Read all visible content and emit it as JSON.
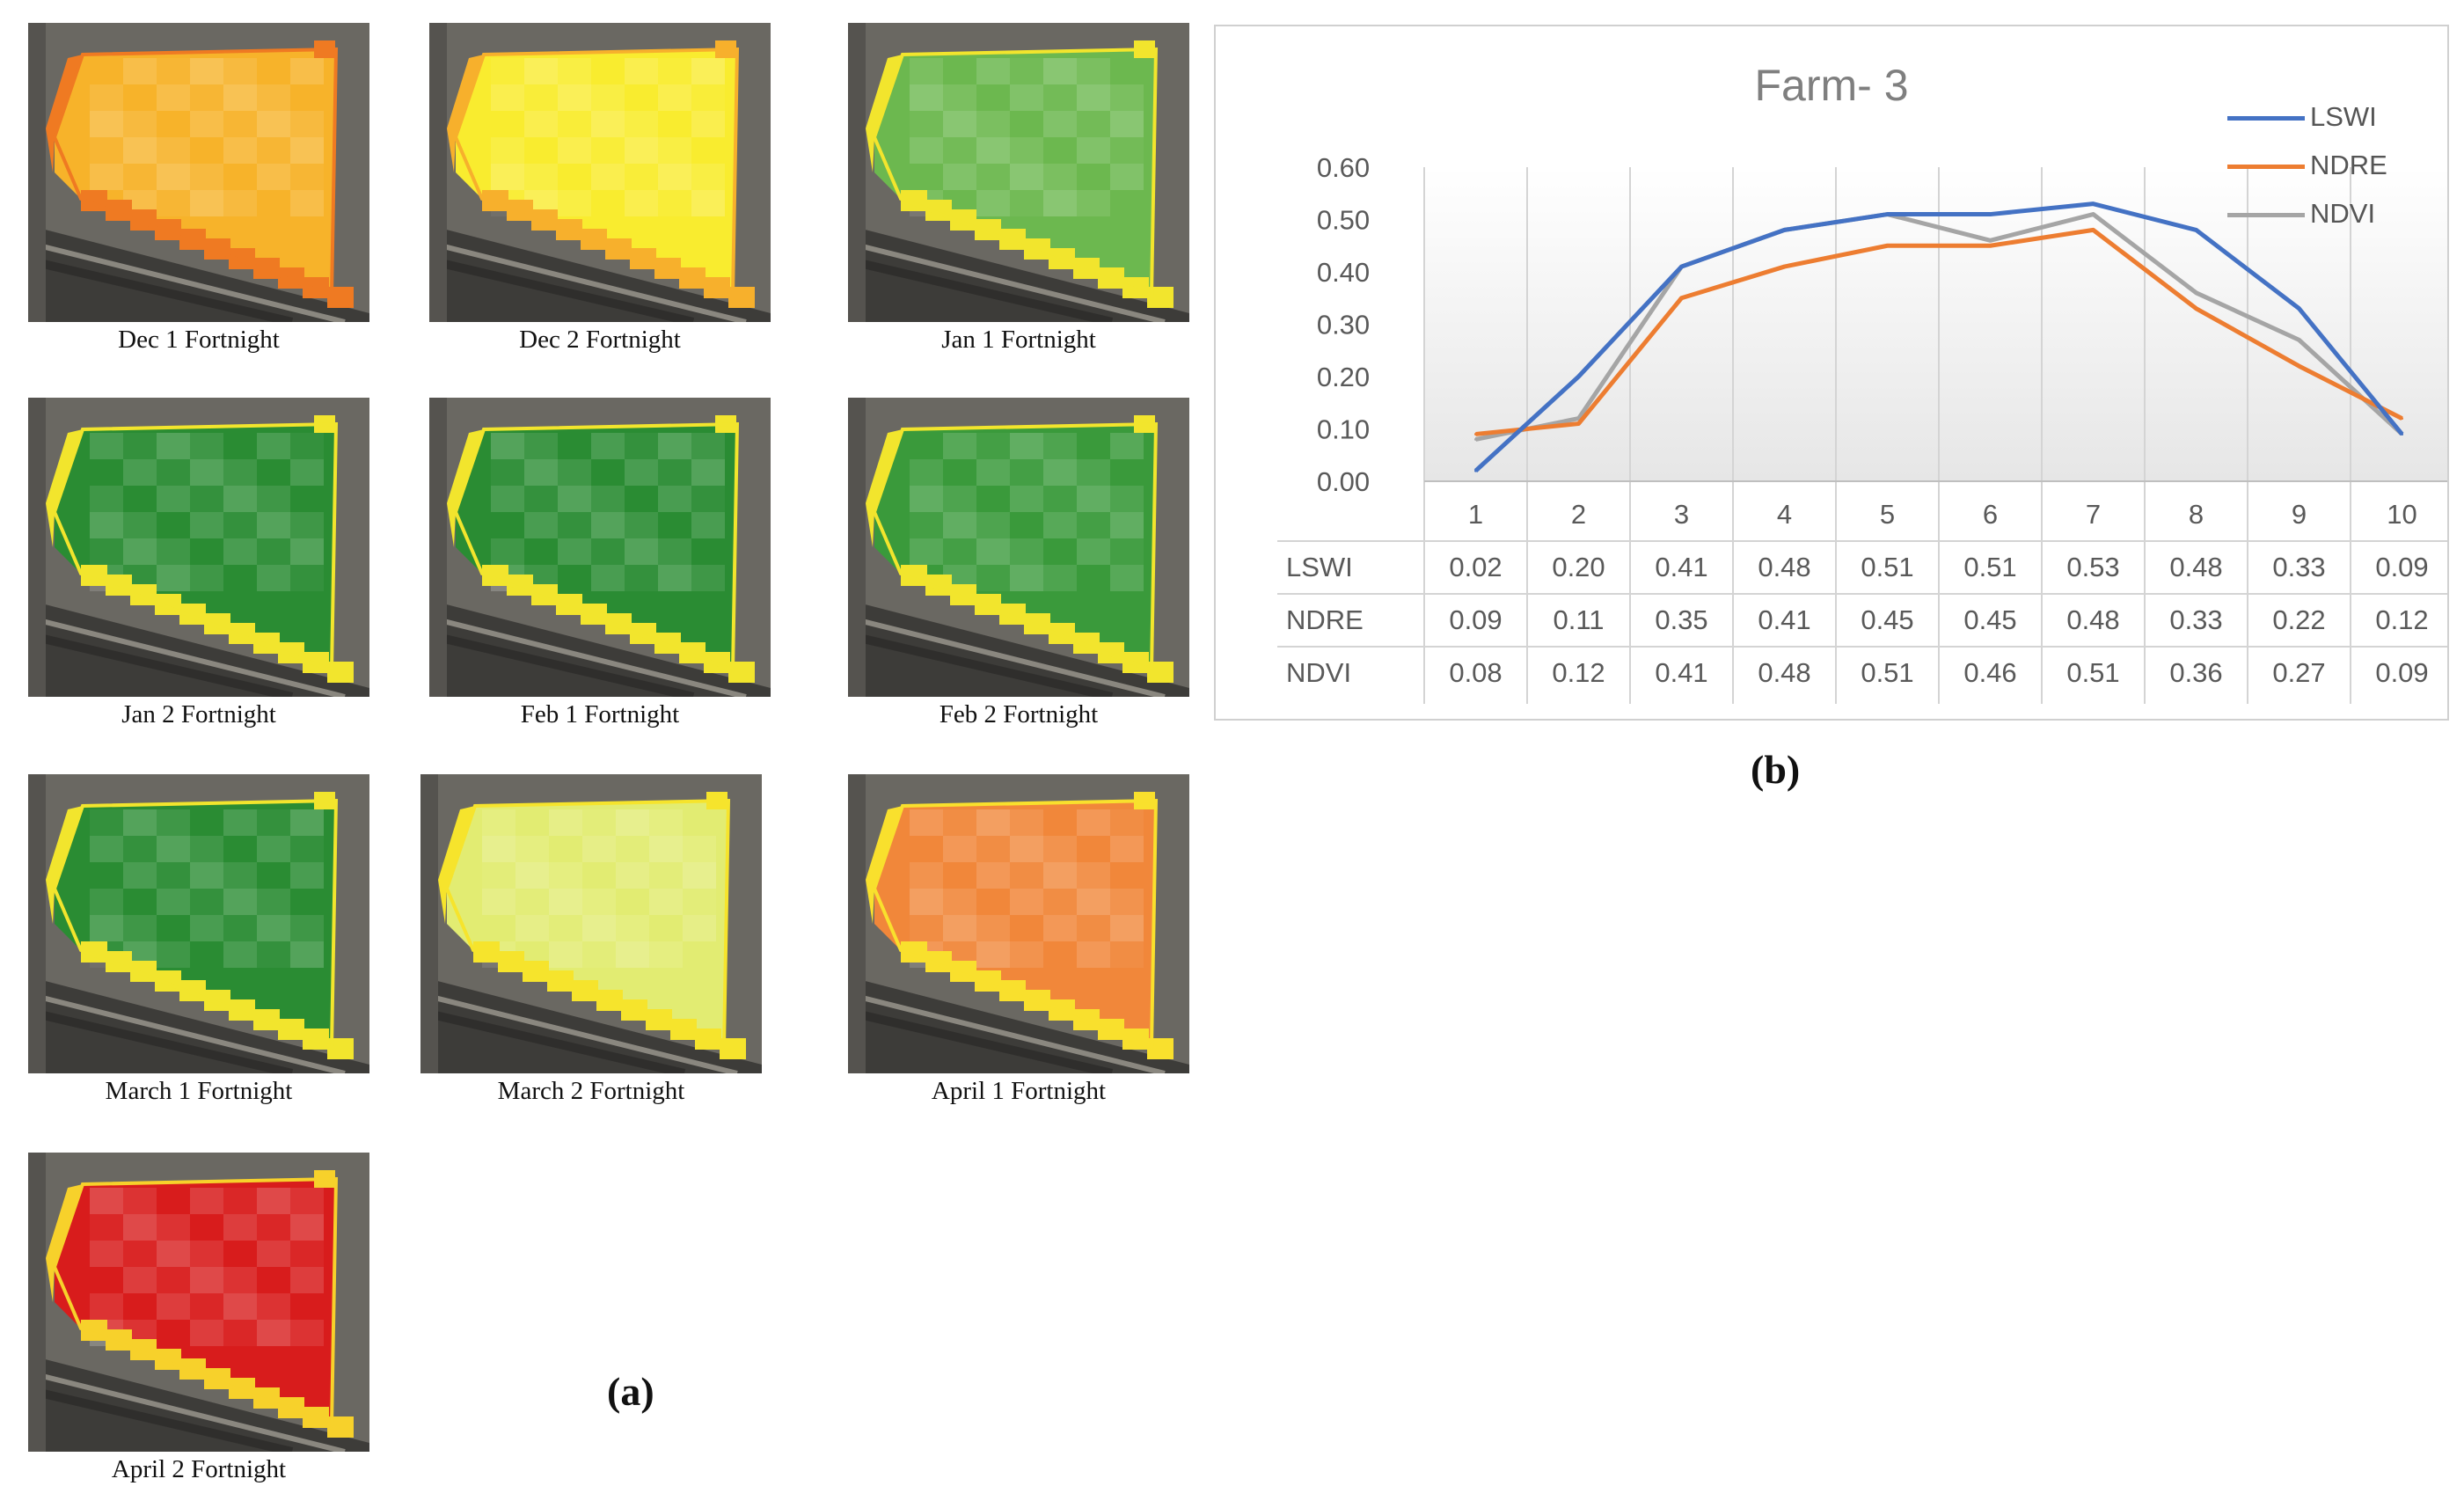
{
  "panel_a": {
    "letter": "(a)",
    "tiles": [
      {
        "label": "Dec 1 Fortnight",
        "field_color": "#f7b32a",
        "edge_color": "#ef7a22"
      },
      {
        "label": "Dec 2 Fortnight",
        "field_color": "#f9ec2f",
        "edge_color": "#f7b02c"
      },
      {
        "label": "Jan 1 Fortnight",
        "field_color": "#6cb84f",
        "edge_color": "#f2e52d"
      },
      {
        "label": "Jan 2 Fortnight",
        "field_color": "#2a8c33",
        "edge_color": "#f2e52d"
      },
      {
        "label": "Feb 1 Fortnight",
        "field_color": "#2a8c33",
        "edge_color": "#f2e52d"
      },
      {
        "label": "Feb 2 Fortnight",
        "field_color": "#3a9a3b",
        "edge_color": "#f2e52d"
      },
      {
        "label": "March 1 Fortnight",
        "field_color": "#2a8c33",
        "edge_color": "#f2e52d"
      },
      {
        "label": "March 2 Fortnight",
        "field_color": "#e2ec72",
        "edge_color": "#f6e42c"
      },
      {
        "label": "April 1 Fortnight",
        "field_color": "#f1873a",
        "edge_color": "#f9e02d"
      },
      {
        "label": "April 2 Fortnight",
        "field_color": "#d81c1c",
        "edge_color": "#f7d12b"
      }
    ]
  },
  "panel_b": {
    "letter": "(b)"
  },
  "chart_data": {
    "type": "line",
    "title": "Farm- 3",
    "categories": [
      "1",
      "2",
      "3",
      "4",
      "5",
      "6",
      "7",
      "8",
      "9",
      "10"
    ],
    "ylim": [
      0,
      0.6
    ],
    "yticks": [
      "0.00",
      "0.10",
      "0.20",
      "0.30",
      "0.40",
      "0.50",
      "0.60"
    ],
    "grid": "vertical",
    "legend_position": "top-right",
    "series": [
      {
        "name": "LSWI",
        "color": "#4472c4",
        "values": [
          0.02,
          0.2,
          0.41,
          0.48,
          0.51,
          0.51,
          0.53,
          0.48,
          0.33,
          0.09
        ]
      },
      {
        "name": "NDRE",
        "color": "#ed7d31",
        "values": [
          0.09,
          0.11,
          0.35,
          0.41,
          0.45,
          0.45,
          0.48,
          0.33,
          0.22,
          0.12
        ]
      },
      {
        "name": "NDVI",
        "color": "#a5a5a5",
        "values": [
          0.08,
          0.12,
          0.41,
          0.48,
          0.51,
          0.46,
          0.51,
          0.36,
          0.27,
          0.09
        ]
      }
    ],
    "data_table": {
      "rows": [
        {
          "name": "LSWI",
          "cells": [
            "0.02",
            "0.20",
            "0.41",
            "0.48",
            "0.51",
            "0.51",
            "0.53",
            "0.48",
            "0.33",
            "0.09"
          ]
        },
        {
          "name": "NDRE",
          "cells": [
            "0.09",
            "0.11",
            "0.35",
            "0.41",
            "0.45",
            "0.45",
            "0.48",
            "0.33",
            "0.22",
            "0.12"
          ]
        },
        {
          "name": "NDVI",
          "cells": [
            "0.08",
            "0.12",
            "0.41",
            "0.48",
            "0.51",
            "0.46",
            "0.51",
            "0.36",
            "0.27",
            "0.09"
          ]
        }
      ]
    }
  }
}
